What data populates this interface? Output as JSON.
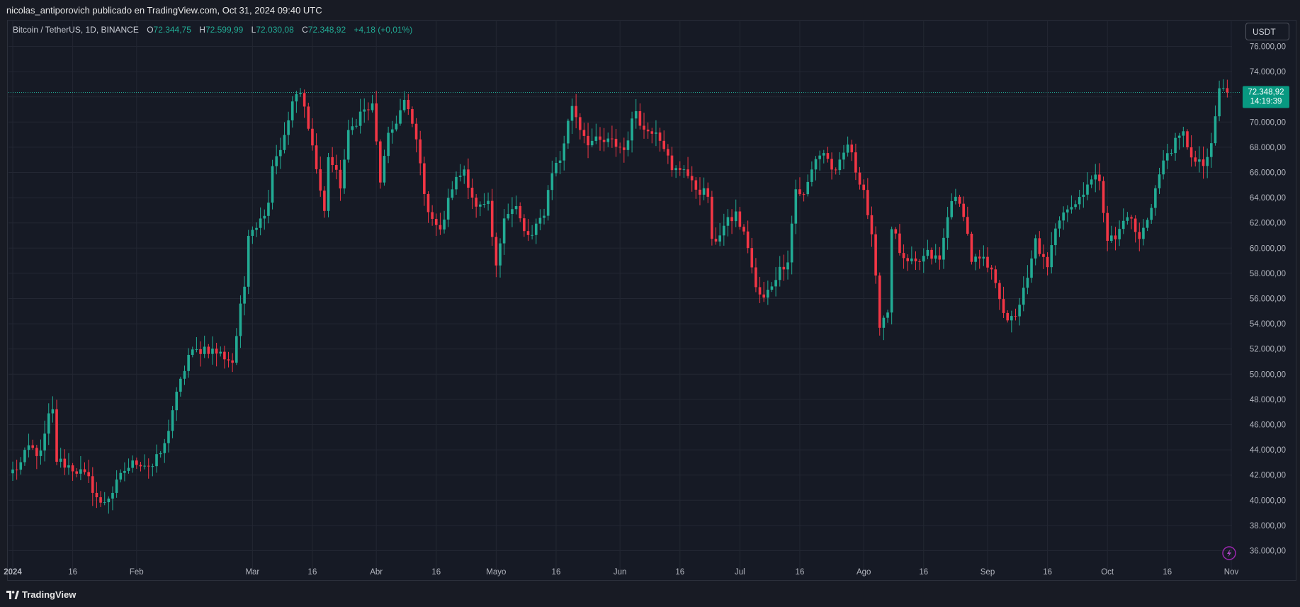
{
  "header": {
    "publisher": "nicolas_antiporovich publicado en TradingView.com, Oct 31, 2024 09:40 UTC"
  },
  "legend": {
    "symbol": "Bitcoin / TetherUS, 1D, BINANCE",
    "open_label": "O",
    "open": "72.344,75",
    "high_label": "H",
    "high": "72.599,99",
    "low_label": "L",
    "low": "72.030,08",
    "close_label": "C",
    "close": "72.348,92",
    "change": "+4,18 (+0,01%)"
  },
  "currency_button": "USDT",
  "price_label": {
    "price": "72.348,92",
    "countdown": "14:19:39"
  },
  "footer": {
    "brand": "TradingView"
  },
  "colors": {
    "up": "#22ab94",
    "down": "#f23645",
    "background": "#161a25",
    "grid": "#232733"
  },
  "icons": {
    "bolt": "bolt-icon",
    "logo": "tradingview-logo-icon"
  },
  "chart_data": {
    "type": "candlestick",
    "x_axis": {
      "range": [
        "2024-01-01",
        "2024-11-01"
      ],
      "tick_labels": [
        {
          "date": "2024-01-01",
          "label": "2024",
          "bold": true
        },
        {
          "date": "2024-01-16",
          "label": "16"
        },
        {
          "date": "2024-02-01",
          "label": "Feb"
        },
        {
          "date": "2024-03-01",
          "label": "Mar"
        },
        {
          "date": "2024-03-16",
          "label": "16"
        },
        {
          "date": "2024-04-01",
          "label": "Abr"
        },
        {
          "date": "2024-04-16",
          "label": "16"
        },
        {
          "date": "2024-05-01",
          "label": "Mayo"
        },
        {
          "date": "2024-05-16",
          "label": "16"
        },
        {
          "date": "2024-06-01",
          "label": "Jun"
        },
        {
          "date": "2024-06-16",
          "label": "16"
        },
        {
          "date": "2024-07-01",
          "label": "Jul"
        },
        {
          "date": "2024-07-16",
          "label": "16"
        },
        {
          "date": "2024-08-01",
          "label": "Ago"
        },
        {
          "date": "2024-08-16",
          "label": "16"
        },
        {
          "date": "2024-09-01",
          "label": "Sep"
        },
        {
          "date": "2024-09-16",
          "label": "16"
        },
        {
          "date": "2024-10-01",
          "label": "Oct"
        },
        {
          "date": "2024-10-16",
          "label": "16"
        },
        {
          "date": "2024-11-01",
          "label": "Nov"
        }
      ]
    },
    "y_axis": {
      "range": [
        35000,
        77000
      ],
      "tick_labels": [
        {
          "value": 36000,
          "label": "36.000,00"
        },
        {
          "value": 38000,
          "label": "38.000,00"
        },
        {
          "value": 40000,
          "label": "40.000,00"
        },
        {
          "value": 42000,
          "label": "42.000,00"
        },
        {
          "value": 44000,
          "label": "44.000,00"
        },
        {
          "value": 46000,
          "label": "46.000,00"
        },
        {
          "value": 48000,
          "label": "48.000,00"
        },
        {
          "value": 50000,
          "label": "50.000,00"
        },
        {
          "value": 52000,
          "label": "52.000,00"
        },
        {
          "value": 54000,
          "label": "54.000,00"
        },
        {
          "value": 56000,
          "label": "56.000,00"
        },
        {
          "value": 58000,
          "label": "58.000,00"
        },
        {
          "value": 60000,
          "label": "60.000,00"
        },
        {
          "value": 62000,
          "label": "62.000,00"
        },
        {
          "value": 64000,
          "label": "64.000,00"
        },
        {
          "value": 66000,
          "label": "66.000,00"
        },
        {
          "value": 68000,
          "label": "68.000,00"
        },
        {
          "value": 70000,
          "label": "70.000,00"
        },
        {
          "value": 72000,
          "label": "72.000,00"
        },
        {
          "value": 74000,
          "label": "74.000,00"
        },
        {
          "value": 76000,
          "label": "76.000,00"
        }
      ]
    },
    "last_price": 72348.92,
    "grid": true,
    "anchors": [
      [
        "2024-01-01",
        42300
      ],
      [
        "2024-01-03",
        42900
      ],
      [
        "2024-01-05",
        44200
      ],
      [
        "2024-01-08",
        43600
      ],
      [
        "2024-01-10",
        46600
      ],
      [
        "2024-01-11",
        47000
      ],
      [
        "2024-01-12",
        43200
      ],
      [
        "2024-01-15",
        42700
      ],
      [
        "2024-01-18",
        42200
      ],
      [
        "2024-01-20",
        41600
      ],
      [
        "2024-01-23",
        39600
      ],
      [
        "2024-01-26",
        40700
      ],
      [
        "2024-01-29",
        42400
      ],
      [
        "2024-02-01",
        43100
      ],
      [
        "2024-02-05",
        42700
      ],
      [
        "2024-02-08",
        44300
      ],
      [
        "2024-02-10",
        47200
      ],
      [
        "2024-02-14",
        51500
      ],
      [
        "2024-02-18",
        52100
      ],
      [
        "2024-02-22",
        51600
      ],
      [
        "2024-02-25",
        51000
      ],
      [
        "2024-02-27",
        55200
      ],
      [
        "2024-02-28",
        57000
      ],
      [
        "2024-02-29",
        61400
      ],
      [
        "2024-03-03",
        62200
      ],
      [
        "2024-03-05",
        63800
      ],
      [
        "2024-03-06",
        66700
      ],
      [
        "2024-03-09",
        68700
      ],
      [
        "2024-03-11",
        71600
      ],
      [
        "2024-03-13",
        72200
      ],
      [
        "2024-03-15",
        69900
      ],
      [
        "2024-03-17",
        66300
      ],
      [
        "2024-03-19",
        62800
      ],
      [
        "2024-03-20",
        67400
      ],
      [
        "2024-03-23",
        65000
      ],
      [
        "2024-03-25",
        69000
      ],
      [
        "2024-03-28",
        70700
      ],
      [
        "2024-03-31",
        71200
      ],
      [
        "2024-04-02",
        65400
      ],
      [
        "2024-04-04",
        68700
      ],
      [
        "2024-04-08",
        71600
      ],
      [
        "2024-04-10",
        69800
      ],
      [
        "2024-04-12",
        67100
      ],
      [
        "2024-04-13",
        63900
      ],
      [
        "2024-04-17",
        61200
      ],
      [
        "2024-04-20",
        64900
      ],
      [
        "2024-04-23",
        66300
      ],
      [
        "2024-04-26",
        63100
      ],
      [
        "2024-04-29",
        63300
      ],
      [
        "2024-05-01",
        58300
      ],
      [
        "2024-05-03",
        62800
      ],
      [
        "2024-05-06",
        63200
      ],
      [
        "2024-05-08",
        61200
      ],
      [
        "2024-05-10",
        60900
      ],
      [
        "2024-05-13",
        62900
      ],
      [
        "2024-05-15",
        66200
      ],
      [
        "2024-05-17",
        67000
      ],
      [
        "2024-05-20",
        71400
      ],
      [
        "2024-05-22",
        69600
      ],
      [
        "2024-05-24",
        68500
      ],
      [
        "2024-05-27",
        68400
      ],
      [
        "2024-05-30",
        68400
      ],
      [
        "2024-06-02",
        67800
      ],
      [
        "2024-06-05",
        71000
      ],
      [
        "2024-06-07",
        69300
      ],
      [
        "2024-06-10",
        69500
      ],
      [
        "2024-06-12",
        68200
      ],
      [
        "2024-06-14",
        66000
      ],
      [
        "2024-06-17",
        66500
      ],
      [
        "2024-06-19",
        65000
      ],
      [
        "2024-06-23",
        64200
      ],
      [
        "2024-06-24",
        60300
      ],
      [
        "2024-06-27",
        61700
      ],
      [
        "2024-06-30",
        62700
      ],
      [
        "2024-07-03",
        60200
      ],
      [
        "2024-07-05",
        56700
      ],
      [
        "2024-07-07",
        55900
      ],
      [
        "2024-07-10",
        57800
      ],
      [
        "2024-07-13",
        59200
      ],
      [
        "2024-07-15",
        64700
      ],
      [
        "2024-07-17",
        64100
      ],
      [
        "2024-07-20",
        67200
      ],
      [
        "2024-07-22",
        67600
      ],
      [
        "2024-07-25",
        65800
      ],
      [
        "2024-07-28",
        68300
      ],
      [
        "2024-07-30",
        66200
      ],
      [
        "2024-08-01",
        64700
      ],
      [
        "2024-08-03",
        60700
      ],
      [
        "2024-08-05",
        54100
      ],
      [
        "2024-08-07",
        55000
      ],
      [
        "2024-08-08",
        61800
      ],
      [
        "2024-08-11",
        58800
      ],
      [
        "2024-08-14",
        58700
      ],
      [
        "2024-08-17",
        59500
      ],
      [
        "2024-08-20",
        59000
      ],
      [
        "2024-08-23",
        64100
      ],
      [
        "2024-08-26",
        62900
      ],
      [
        "2024-08-28",
        59100
      ],
      [
        "2024-08-31",
        58900
      ],
      [
        "2024-09-03",
        57500
      ],
      [
        "2024-09-06",
        53900
      ],
      [
        "2024-09-08",
        54800
      ],
      [
        "2024-09-11",
        57400
      ],
      [
        "2024-09-13",
        60600
      ],
      [
        "2024-09-16",
        58200
      ],
      [
        "2024-09-18",
        61800
      ],
      [
        "2024-09-20",
        63200
      ],
      [
        "2024-09-23",
        63500
      ],
      [
        "2024-09-26",
        65200
      ],
      [
        "2024-09-29",
        65600
      ],
      [
        "2024-10-01",
        60800
      ],
      [
        "2024-10-03",
        60700
      ],
      [
        "2024-10-06",
        62800
      ],
      [
        "2024-10-09",
        60600
      ],
      [
        "2024-10-11",
        62400
      ],
      [
        "2024-10-14",
        65800
      ],
      [
        "2024-10-16",
        67600
      ],
      [
        "2024-10-20",
        69000
      ],
      [
        "2024-10-23",
        66700
      ],
      [
        "2024-10-25",
        66600
      ],
      [
        "2024-10-27",
        67900
      ],
      [
        "2024-10-29",
        72700
      ],
      [
        "2024-10-31",
        72349
      ]
    ]
  }
}
